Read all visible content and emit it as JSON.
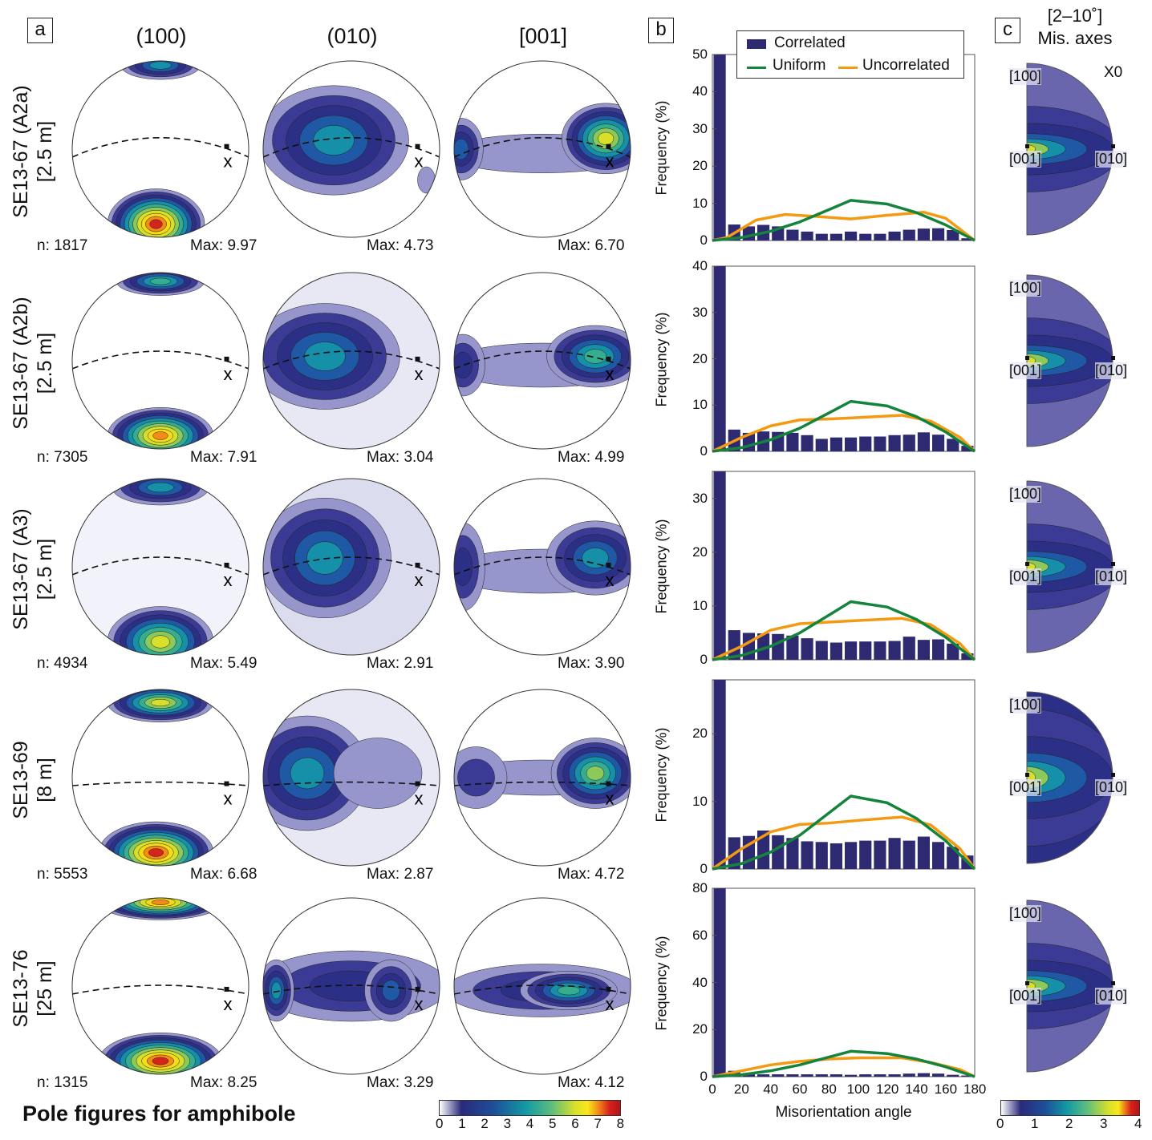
{
  "title": "Pole figures for amphibole",
  "panels": {
    "a": "a",
    "b": "b",
    "c": "c"
  },
  "columns": [
    "(100)",
    "(010)",
    "[001]"
  ],
  "rows": [
    {
      "label": "SE13-67 (A2a)",
      "sub": "[2.5 m]",
      "n": "n: 1817",
      "max": [
        "Max: 9.97",
        "Max: 4.73",
        "Max: 6.70"
      ]
    },
    {
      "label": "SE13-67 (A2b)",
      "sub": "[2.5 m]",
      "n": "n: 7305",
      "max": [
        "Max: 7.91",
        "Max: 3.04",
        "Max: 4.99"
      ]
    },
    {
      "label": "SE13-67 (A3)",
      "sub": "[2.5 m]",
      "n": "n: 4934",
      "max": [
        "Max: 5.49",
        "Max: 2.91",
        "Max: 3.90"
      ]
    },
    {
      "label": "SE13-69",
      "sub": "[8 m]",
      "n": "n: 5553",
      "max": [
        "Max: 6.68",
        "Max: 2.87",
        "Max: 4.72"
      ]
    },
    {
      "label": "SE13-76",
      "sub": "[25 m]",
      "n": "n: 1315",
      "max": [
        "Max: 8.25",
        "Max: 3.29",
        "Max: 4.12"
      ]
    }
  ],
  "pole_marker": "x",
  "colorbar_a": {
    "ticks": [
      "0",
      "1",
      "2",
      "3",
      "4",
      "5",
      "6",
      "7",
      "8"
    ]
  },
  "colorbar_c": {
    "ticks": [
      "0",
      "1",
      "2",
      "3",
      "4"
    ]
  },
  "panel_c": {
    "title1": "[2–10˚]",
    "title2": "Mis. axes",
    "x0": "X0",
    "axes": [
      "[100]",
      "[001]",
      "[010]"
    ]
  },
  "legend": {
    "correlated": "Correlated",
    "uniform": "Uniform",
    "uncorrelated": "Uncorrelated"
  },
  "colors": {
    "correlated": "#2e2a72",
    "uniform": "#14843c",
    "uncorrelated": "#f39a12"
  },
  "chart_data": [
    {
      "type": "bar",
      "ylabel": "Frequency (%)",
      "xlabel": "",
      "xlim": [
        0,
        180
      ],
      "ylim": [
        0,
        50
      ],
      "yticks": [
        "0",
        "10",
        "20",
        "30",
        "40",
        "50"
      ],
      "bin_starts": [
        0,
        10,
        20,
        30,
        40,
        50,
        60,
        70,
        80,
        90,
        100,
        110,
        120,
        130,
        140,
        150,
        160,
        170
      ],
      "series": [
        {
          "name": "Correlated",
          "values": [
            50,
            4.3,
            3.8,
            4.2,
            3.8,
            2.9,
            2.4,
            1.8,
            1.8,
            2.4,
            1.8,
            1.8,
            2.4,
            2.9,
            3.2,
            3.3,
            2.8,
            0.6
          ]
        },
        {
          "name": "Uniform",
          "x": [
            0,
            20,
            40,
            60,
            80,
            95,
            120,
            140,
            160,
            180
          ],
          "y": [
            0,
            0.8,
            2.5,
            5,
            8.3,
            10.8,
            9.8,
            7.5,
            4.2,
            0
          ]
        },
        {
          "name": "Uncorrelated",
          "x": [
            0,
            10,
            30,
            50,
            70,
            95,
            120,
            145,
            160,
            180
          ],
          "y": [
            0,
            0.8,
            5.5,
            7,
            6.5,
            5.8,
            6.8,
            7.6,
            6,
            0
          ]
        }
      ]
    },
    {
      "type": "bar",
      "ylabel": "Frequency (%)",
      "xlabel": "",
      "xlim": [
        0,
        180
      ],
      "ylim": [
        0,
        40
      ],
      "yticks": [
        "0",
        "10",
        "20",
        "30",
        "40"
      ],
      "series": [
        {
          "name": "Correlated",
          "values": [
            40,
            4.7,
            4,
            4.3,
            4.2,
            4,
            3.5,
            2.7,
            3,
            3,
            3.2,
            3.2,
            3.5,
            3.6,
            4.1,
            3.6,
            2.7,
            1.2
          ]
        },
        {
          "name": "Uniform",
          "x": [
            0,
            20,
            40,
            60,
            80,
            95,
            120,
            140,
            160,
            180
          ],
          "y": [
            0,
            0.8,
            2.5,
            5,
            8.3,
            10.8,
            9.8,
            7.5,
            4.2,
            0
          ]
        },
        {
          "name": "Uncorrelated",
          "x": [
            0,
            20,
            40,
            60,
            80,
            100,
            130,
            150,
            170,
            180
          ],
          "y": [
            0,
            3,
            5.5,
            6.8,
            7,
            7.3,
            7.8,
            6.5,
            3,
            0
          ]
        }
      ]
    },
    {
      "type": "bar",
      "ylabel": "Frequency (%)",
      "xlabel": "",
      "xlim": [
        0,
        180
      ],
      "ylim": [
        0,
        35
      ],
      "yticks": [
        "0",
        "10",
        "20",
        "30"
      ],
      "series": [
        {
          "name": "Correlated",
          "values": [
            35,
            5.5,
            5,
            4.9,
            4.8,
            4.5,
            4,
            3.5,
            3.2,
            3.4,
            3.4,
            3.4,
            3.5,
            4.3,
            3.7,
            3.8,
            3,
            1.2
          ]
        },
        {
          "name": "Uniform",
          "x": [
            0,
            20,
            40,
            60,
            80,
            95,
            120,
            140,
            160,
            180
          ],
          "y": [
            0,
            0.8,
            2.5,
            5,
            8.3,
            10.8,
            9.8,
            7.5,
            4.2,
            0
          ]
        },
        {
          "name": "Uncorrelated",
          "x": [
            0,
            20,
            40,
            60,
            80,
            100,
            130,
            150,
            170,
            180
          ],
          "y": [
            0,
            2.5,
            5.5,
            6.7,
            7,
            7.3,
            7.7,
            6.5,
            3,
            0
          ]
        }
      ]
    },
    {
      "type": "bar",
      "ylabel": "Frequency (%)",
      "xlabel": "",
      "xlim": [
        0,
        180
      ],
      "ylim": [
        0,
        28
      ],
      "yticks": [
        "0",
        "10",
        "20"
      ],
      "series": [
        {
          "name": "Correlated",
          "values": [
            28,
            4.7,
            4.9,
            5.7,
            5,
            4.6,
            4.1,
            4,
            3.8,
            4,
            4.2,
            4.2,
            4.6,
            4.2,
            4.8,
            4,
            3.3,
            2
          ]
        },
        {
          "name": "Uniform",
          "x": [
            0,
            20,
            40,
            60,
            80,
            95,
            120,
            140,
            160,
            180
          ],
          "y": [
            0,
            0.8,
            2.5,
            5,
            8.3,
            10.8,
            9.8,
            7.5,
            4.2,
            0
          ]
        },
        {
          "name": "Uncorrelated",
          "x": [
            0,
            20,
            40,
            60,
            80,
            100,
            130,
            150,
            170,
            180
          ],
          "y": [
            0,
            3,
            5.5,
            6.6,
            6.8,
            7.2,
            7.7,
            6.5,
            3,
            0
          ]
        }
      ]
    },
    {
      "type": "bar",
      "ylabel": "Frequency (%)",
      "xlabel": "Misorientation angle",
      "xlim": [
        0,
        180
      ],
      "ylim": [
        0,
        80
      ],
      "yticks": [
        "0",
        "20",
        "40",
        "60",
        "80"
      ],
      "xticks": [
        "0",
        "20",
        "40",
        "60",
        "80",
        "100",
        "120",
        "140",
        "160",
        "180"
      ],
      "series": [
        {
          "name": "Correlated",
          "values": [
            80,
            2.5,
            1.5,
            1,
            1,
            1,
            1,
            1,
            1,
            0.8,
            1,
            1,
            1,
            1.3,
            1.5,
            1.3,
            0.8,
            0.5
          ]
        },
        {
          "name": "Uniform",
          "x": [
            0,
            20,
            40,
            60,
            80,
            95,
            120,
            140,
            160,
            180
          ],
          "y": [
            0,
            0.8,
            2.5,
            5,
            8.3,
            10.8,
            9.8,
            7.5,
            4.2,
            0
          ]
        },
        {
          "name": "Uncorrelated",
          "x": [
            0,
            20,
            40,
            60,
            80,
            100,
            130,
            150,
            170,
            180
          ],
          "y": [
            0,
            2.5,
            5,
            6.5,
            7.5,
            8,
            8,
            6,
            3,
            0
          ]
        }
      ]
    }
  ]
}
